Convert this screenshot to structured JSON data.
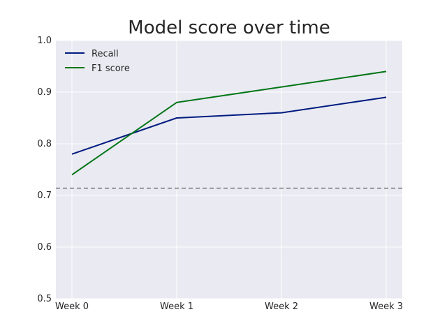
{
  "chart_data": {
    "type": "line",
    "title": "Model score over time",
    "xlabel": "",
    "ylabel": "",
    "categories": [
      "Week 0",
      "Week 1",
      "Week 2",
      "Week 3"
    ],
    "ylim": [
      0.5,
      1.0
    ],
    "yticks": [
      "0.5",
      "0.6",
      "0.7",
      "0.8",
      "0.9",
      "1.0"
    ],
    "grid": true,
    "legend_position": "top-left",
    "background": "#eaeaf2",
    "series": [
      {
        "name": "Recall",
        "values": [
          0.78,
          0.85,
          0.86,
          0.89
        ],
        "color": "#001c7f"
      },
      {
        "name": "F1 score",
        "values": [
          0.74,
          0.88,
          0.91,
          0.94
        ],
        "color": "#017517"
      }
    ],
    "reference_line": {
      "y": 0.714,
      "color": "#808080",
      "style": "dashed"
    }
  }
}
